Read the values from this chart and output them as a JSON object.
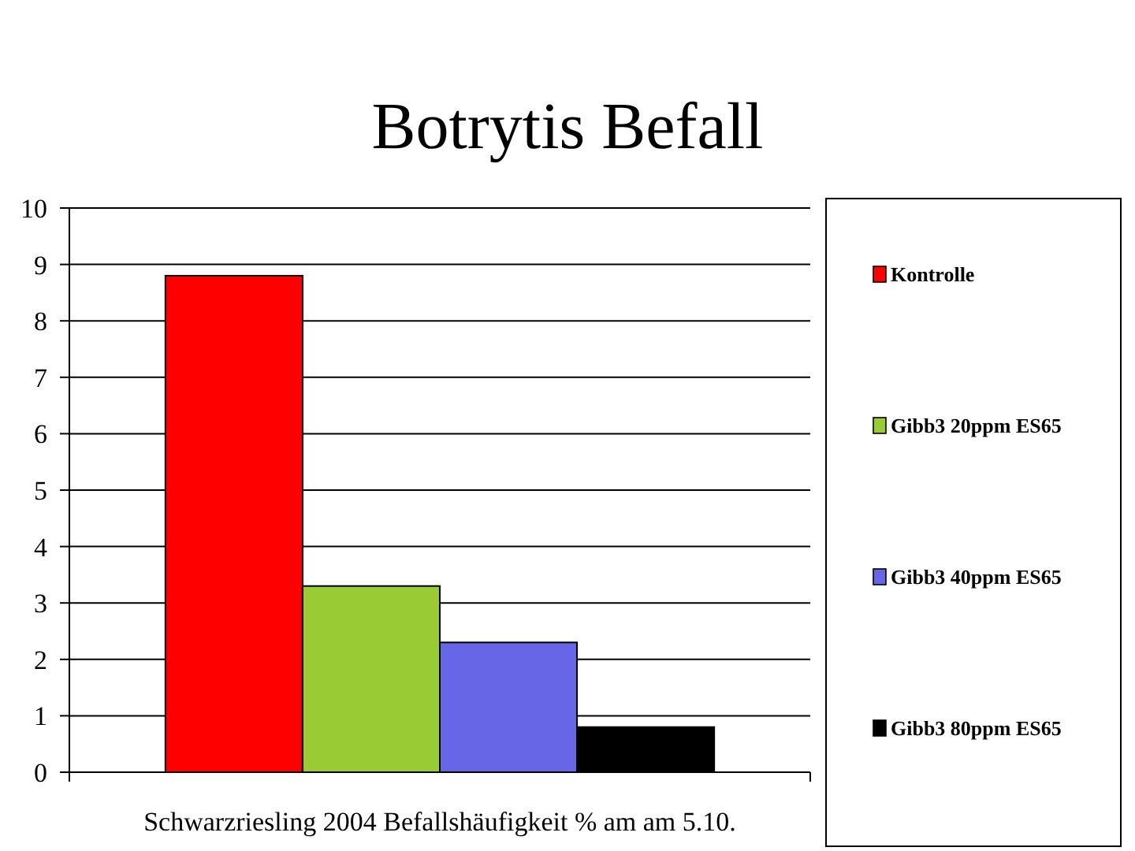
{
  "chart_data": {
    "type": "bar",
    "title": "Botrytis Befall",
    "categories": [
      "Schwarzriesling 2004 Befallshäufigkeit % am am 5.10."
    ],
    "series": [
      {
        "name": "Kontrolle",
        "color": "#ff0000",
        "values": [
          8.8
        ]
      },
      {
        "name": "Gibb3 20ppm ES65",
        "color": "#99cc33",
        "values": [
          3.3
        ]
      },
      {
        "name": "Gibb3 40ppm ES65",
        "color": "#6666e6",
        "values": [
          2.3
        ]
      },
      {
        "name": "Gibb3 80ppm ES65",
        "color": "#000000",
        "values": [
          0.8
        ]
      }
    ],
    "ylim": [
      0,
      10
    ],
    "yticks": [
      0,
      1,
      2,
      3,
      4,
      5,
      6,
      7,
      8,
      9,
      10
    ],
    "grid": "y",
    "legend": "right"
  }
}
